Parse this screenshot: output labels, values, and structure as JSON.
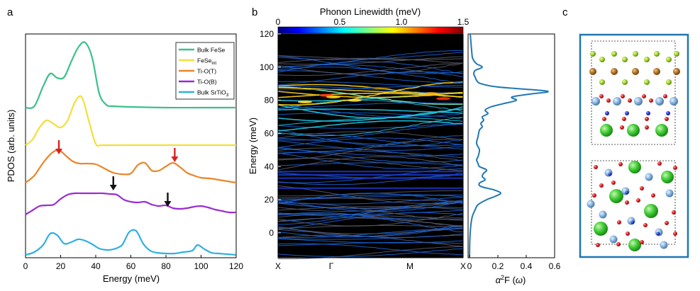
{
  "panel_labels": {
    "a": "a",
    "b": "b",
    "c": "c"
  },
  "colors": {
    "bulk_fese": "#3cc08a",
    "fese_int": "#f2df3a",
    "tio_t": "#e9862a",
    "tio_b": "#9a2ccf",
    "bulk_srtio3": "#2fb0e0",
    "red_arrow": "#d92020",
    "black_arrow": "#111111",
    "a2f_line": "#1f77b4",
    "unit_cell_border": "#1f76b4"
  },
  "chart_data": [
    {
      "id": "pdos",
      "type": "line",
      "xlabel": "Energy (meV)",
      "ylabel": "PDOS (arb. units)",
      "xlim": [
        0,
        120
      ],
      "xticks": [
        "0",
        "20",
        "40",
        "60",
        "80",
        "100",
        "120"
      ],
      "legend_position": "top-right",
      "legend": [
        {
          "label": "Bulk FeSe",
          "sub": "",
          "color_key": "bulk_fese"
        },
        {
          "label": "FeSe",
          "sub": "int",
          "color_key": "fese_int"
        },
        {
          "label": "Ti-O(T)",
          "sub": "",
          "color_key": "tio_t"
        },
        {
          "label": "Ti-O(B)",
          "sub": "",
          "color_key": "tio_b"
        },
        {
          "label": "Bulk SrTiO",
          "sub": "3",
          "color_key": "bulk_srtio3"
        }
      ],
      "series": [
        {
          "key": "bulk_fese",
          "baseline": 0.0,
          "x": [
            0,
            5,
            10,
            14,
            18,
            22,
            26,
            30,
            34,
            38,
            42,
            46,
            50,
            60,
            80,
            100,
            120
          ],
          "y": [
            0,
            2,
            30,
            48,
            42,
            43,
            65,
            85,
            92,
            70,
            20,
            4,
            2,
            1,
            0,
            0,
            0
          ]
        },
        {
          "key": "fese_int",
          "baseline": 0.0,
          "x": [
            0,
            4,
            8,
            12,
            16,
            20,
            24,
            28,
            32,
            36,
            40,
            44,
            60,
            80,
            100,
            120
          ],
          "y": [
            0,
            8,
            25,
            35,
            30,
            25,
            35,
            60,
            68,
            35,
            2,
            0,
            0,
            0,
            0,
            0
          ]
        },
        {
          "key": "tio_t",
          "baseline": 0.0,
          "x": [
            0,
            5,
            10,
            15,
            19,
            23,
            27,
            31,
            35,
            40,
            45,
            50,
            55,
            60,
            64,
            68,
            72,
            76,
            80,
            84,
            88,
            92,
            96,
            100,
            105,
            110,
            115,
            120
          ],
          "y": [
            0,
            10,
            28,
            42,
            46,
            38,
            30,
            27,
            27,
            26,
            20,
            14,
            12,
            13,
            25,
            28,
            17,
            17,
            23,
            28,
            22,
            14,
            10,
            7,
            6,
            4,
            2,
            0
          ]
        },
        {
          "key": "tio_b",
          "baseline": 0.0,
          "x": [
            0,
            4,
            8,
            12,
            16,
            20,
            24,
            28,
            32,
            36,
            40,
            44,
            48,
            52,
            56,
            60,
            64,
            68,
            72,
            76,
            80,
            84,
            88,
            92,
            96,
            100,
            104,
            108,
            112,
            116,
            120
          ],
          "y": [
            0,
            6,
            12,
            13,
            14,
            22,
            28,
            30,
            30,
            30,
            30,
            30,
            29,
            28,
            21,
            18,
            17,
            18,
            14,
            12,
            13,
            9,
            8,
            9,
            11,
            12,
            10,
            7,
            5,
            3,
            3
          ]
        },
        {
          "key": "bulk_srtio3",
          "baseline": 0.0,
          "x": [
            0,
            5,
            10,
            14,
            18,
            22,
            26,
            30,
            34,
            38,
            42,
            46,
            50,
            55,
            59,
            63,
            67,
            71,
            75,
            80,
            85,
            90,
            95,
            98,
            102,
            106,
            110,
            115,
            120
          ],
          "y": [
            0,
            4,
            14,
            30,
            28,
            16,
            18,
            22,
            20,
            15,
            9,
            7,
            8,
            14,
            32,
            34,
            16,
            6,
            3,
            2,
            2,
            4,
            6,
            14,
            8,
            3,
            2,
            1,
            0
          ]
        }
      ],
      "annotations": {
        "red_arrows_x": [
          19,
          85
        ],
        "black_arrows_x": [
          50,
          81
        ]
      }
    },
    {
      "id": "phonon_dispersion",
      "type": "heatmap",
      "colorbar_label": "Phonon Linewidth (meV)",
      "colorbar_ticks": [
        "0",
        "0.5",
        "1.0",
        "1.5"
      ],
      "colorbar_range": [
        0,
        1.5
      ],
      "ylabel": "Energy (meV)",
      "ylim": [
        -15,
        120
      ],
      "yticks": [
        "0",
        "20",
        "40",
        "60",
        "80",
        "100",
        "120"
      ],
      "kpath": [
        "X",
        "Γ",
        "M",
        "X"
      ]
    },
    {
      "id": "eliashberg",
      "type": "line",
      "xlabel_parts": [
        "α",
        "2",
        "F (",
        "ω",
        ")"
      ],
      "xlim": [
        0,
        0.6
      ],
      "xticks": [
        "0",
        "0.2",
        "0.4",
        "0.6"
      ],
      "ylim": [
        -15,
        120
      ],
      "series": [
        {
          "name": "",
          "energy": [
            -15,
            -5,
            0,
            5,
            10,
            14,
            17,
            20,
            22,
            24,
            26,
            28,
            30,
            32,
            34,
            36,
            38,
            40,
            42,
            44,
            46,
            50,
            54,
            58,
            62,
            64,
            66,
            68,
            70,
            72,
            74,
            76,
            78,
            80,
            82,
            84,
            85,
            86,
            88,
            90,
            92,
            94,
            96,
            98,
            100,
            102,
            104,
            106,
            110,
            115,
            120
          ],
          "a2f": [
            0,
            0.002,
            0.005,
            0.01,
            0.02,
            0.04,
            0.06,
            0.12,
            0.18,
            0.22,
            0.17,
            0.08,
            0.07,
            0.11,
            0.09,
            0.1,
            0.12,
            0.07,
            0.06,
            0.05,
            0.06,
            0.07,
            0.05,
            0.06,
            0.07,
            0.09,
            0.08,
            0.1,
            0.09,
            0.13,
            0.11,
            0.15,
            0.24,
            0.33,
            0.3,
            0.45,
            0.55,
            0.5,
            0.2,
            0.08,
            0.05,
            0.04,
            0.03,
            0.04,
            0.09,
            0.05,
            0.03,
            0.02,
            0.015,
            0.01,
            0.005
          ]
        }
      ]
    }
  ]
}
